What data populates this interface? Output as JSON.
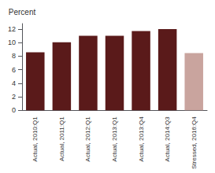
{
  "chart_data": {
    "type": "bar",
    "ylabel": "Percent",
    "categories": [
      "Actual, 2010:Q1",
      "Actual, 2011:Q1",
      "Actual, 2012:Q1",
      "Actual, 2013:Q1",
      "Actual, 2013:Q4",
      "Actual, 2014:Q3",
      "Stressed, 2016:Q4"
    ],
    "values": [
      8.55,
      10.05,
      11.0,
      11.0,
      11.7,
      12.0,
      8.45
    ],
    "colors": [
      "#5a1a1a",
      "#5a1a1a",
      "#5a1a1a",
      "#5a1a1a",
      "#5a1a1a",
      "#5a1a1a",
      "#c9a49e"
    ],
    "ylim": [
      0,
      12.8
    ],
    "yticks": [
      0,
      2,
      4,
      6,
      8,
      10,
      12
    ],
    "grid": false
  }
}
